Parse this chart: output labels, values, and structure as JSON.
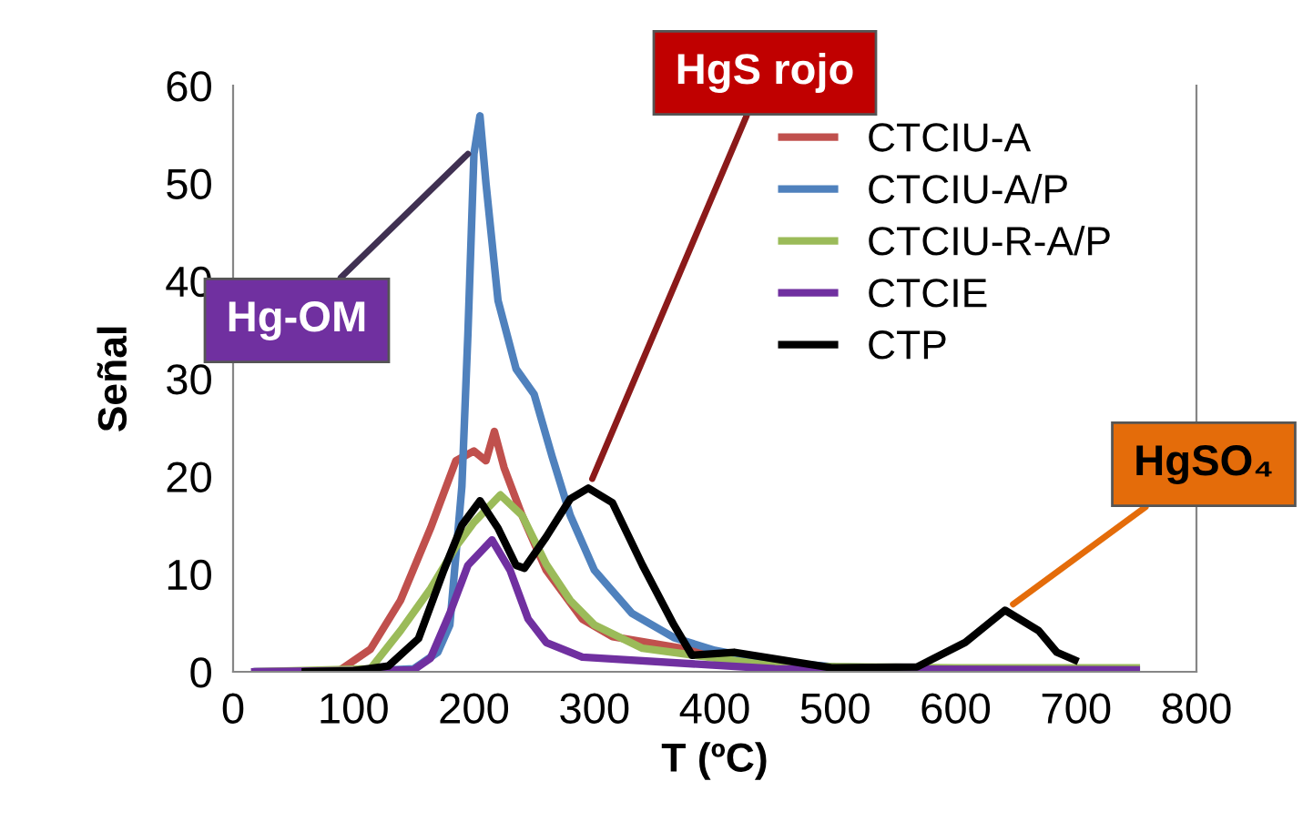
{
  "chart_data": {
    "type": "line",
    "xlabel": "T (ºC)",
    "ylabel": "Señal",
    "xlim": [
      0,
      800
    ],
    "ylim": [
      0,
      60
    ],
    "xticks": [
      0,
      100,
      200,
      300,
      400,
      500,
      600,
      700,
      800
    ],
    "yticks": [
      0,
      10,
      20,
      30,
      40,
      50,
      60
    ],
    "grid": false,
    "legend": "top right",
    "marker": "none",
    "line_style": "solid",
    "series": [
      {
        "name": "CTCIU-A",
        "color": "#c0504d",
        "x": [
          50,
          89,
          114,
          139,
          164,
          185,
          200,
          210,
          217,
          225,
          240,
          260,
          290,
          315,
          450,
          500
        ],
        "values": [
          0,
          0.2,
          2.3,
          7.3,
          14.7,
          21.6,
          22.6,
          21.6,
          24.6,
          20.9,
          16,
          10.4,
          5.4,
          3.6,
          0.8,
          0.3
        ]
      },
      {
        "name": "CTCIU-A/P",
        "color": "#4f81bd",
        "x": [
          20,
          100,
          150,
          170,
          180,
          190,
          195,
          200,
          205,
          210,
          220,
          235,
          250,
          265,
          280,
          300,
          331,
          366,
          400,
          450,
          500,
          600,
          750
        ],
        "values": [
          0,
          0,
          0.3,
          2,
          4.8,
          19,
          34.6,
          53,
          56.9,
          50,
          38,
          31,
          28.4,
          22,
          16,
          10.4,
          6,
          3.5,
          2.2,
          1,
          0.5,
          0.3,
          0.3
        ]
      },
      {
        "name": "CTCIU-R-A/P",
        "color": "#9bbb59",
        "x": [
          20,
          114,
          139,
          164,
          185,
          200,
          222,
          240,
          260,
          280,
          300,
          340,
          450,
          600,
          750
        ],
        "values": [
          0,
          0.3,
          4.2,
          8.5,
          12.8,
          15.3,
          18.1,
          16,
          11,
          7.3,
          4.8,
          2.4,
          0.6,
          0.4,
          0.4
        ]
      },
      {
        "name": "CTCIE",
        "color": "#7030a0",
        "x": [
          18,
          150,
          164,
          180,
          195,
          215,
          230,
          245,
          260,
          290,
          450,
          750
        ],
        "values": [
          0,
          0.2,
          1.4,
          6,
          10.9,
          13.5,
          10.4,
          5.4,
          3,
          1.5,
          0.3,
          0.2
        ]
      },
      {
        "name": "CTP",
        "color": "#000000",
        "x": [
          60,
          100,
          129,
          154,
          175,
          190,
          205,
          220,
          235,
          242,
          260,
          280,
          295,
          315,
          340,
          366,
          381,
          416,
          497,
          568,
          608,
          641,
          669,
          684,
          699
        ],
        "values": [
          0,
          0.1,
          0.6,
          3.4,
          10.4,
          15,
          17.5,
          14.7,
          10.9,
          10.6,
          13.8,
          17.7,
          18.8,
          17.3,
          10.9,
          4.8,
          1.7,
          2,
          0.4,
          0.5,
          3,
          6.3,
          4.2,
          2,
          1.2
        ]
      }
    ],
    "annotations": [
      {
        "text": "Hg-OM",
        "x": 195,
        "y": 53
      },
      {
        "text": "HgS rojo",
        "x": 295,
        "y": 18.8
      },
      {
        "text": "HgSO₄",
        "x": 641,
        "y": 6.3
      }
    ]
  }
}
